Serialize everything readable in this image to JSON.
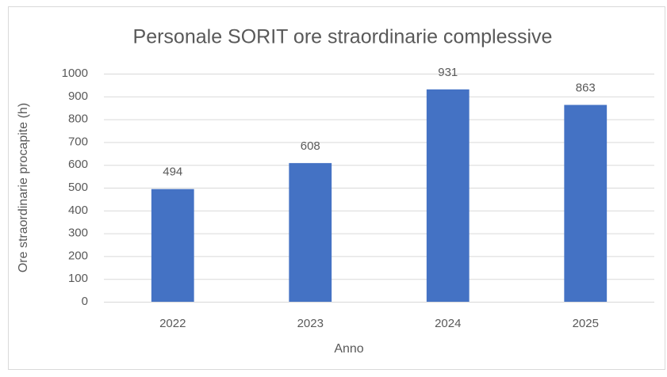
{
  "chart_data": {
    "type": "bar",
    "title": "Personale SORIT ore straordinarie complessive",
    "x_label": "Anno",
    "y_label": "Ore straordinarie procapite (h)",
    "categories": [
      "2022",
      "2023",
      "2024",
      "2025"
    ],
    "values": [
      494,
      608,
      931,
      863
    ],
    "color": "#4472c4",
    "ylim": [
      0,
      1000
    ],
    "yticks": [
      0,
      100,
      200,
      300,
      400,
      500,
      600,
      700,
      800,
      900,
      1000
    ],
    "grid": true,
    "data_labels": true
  }
}
